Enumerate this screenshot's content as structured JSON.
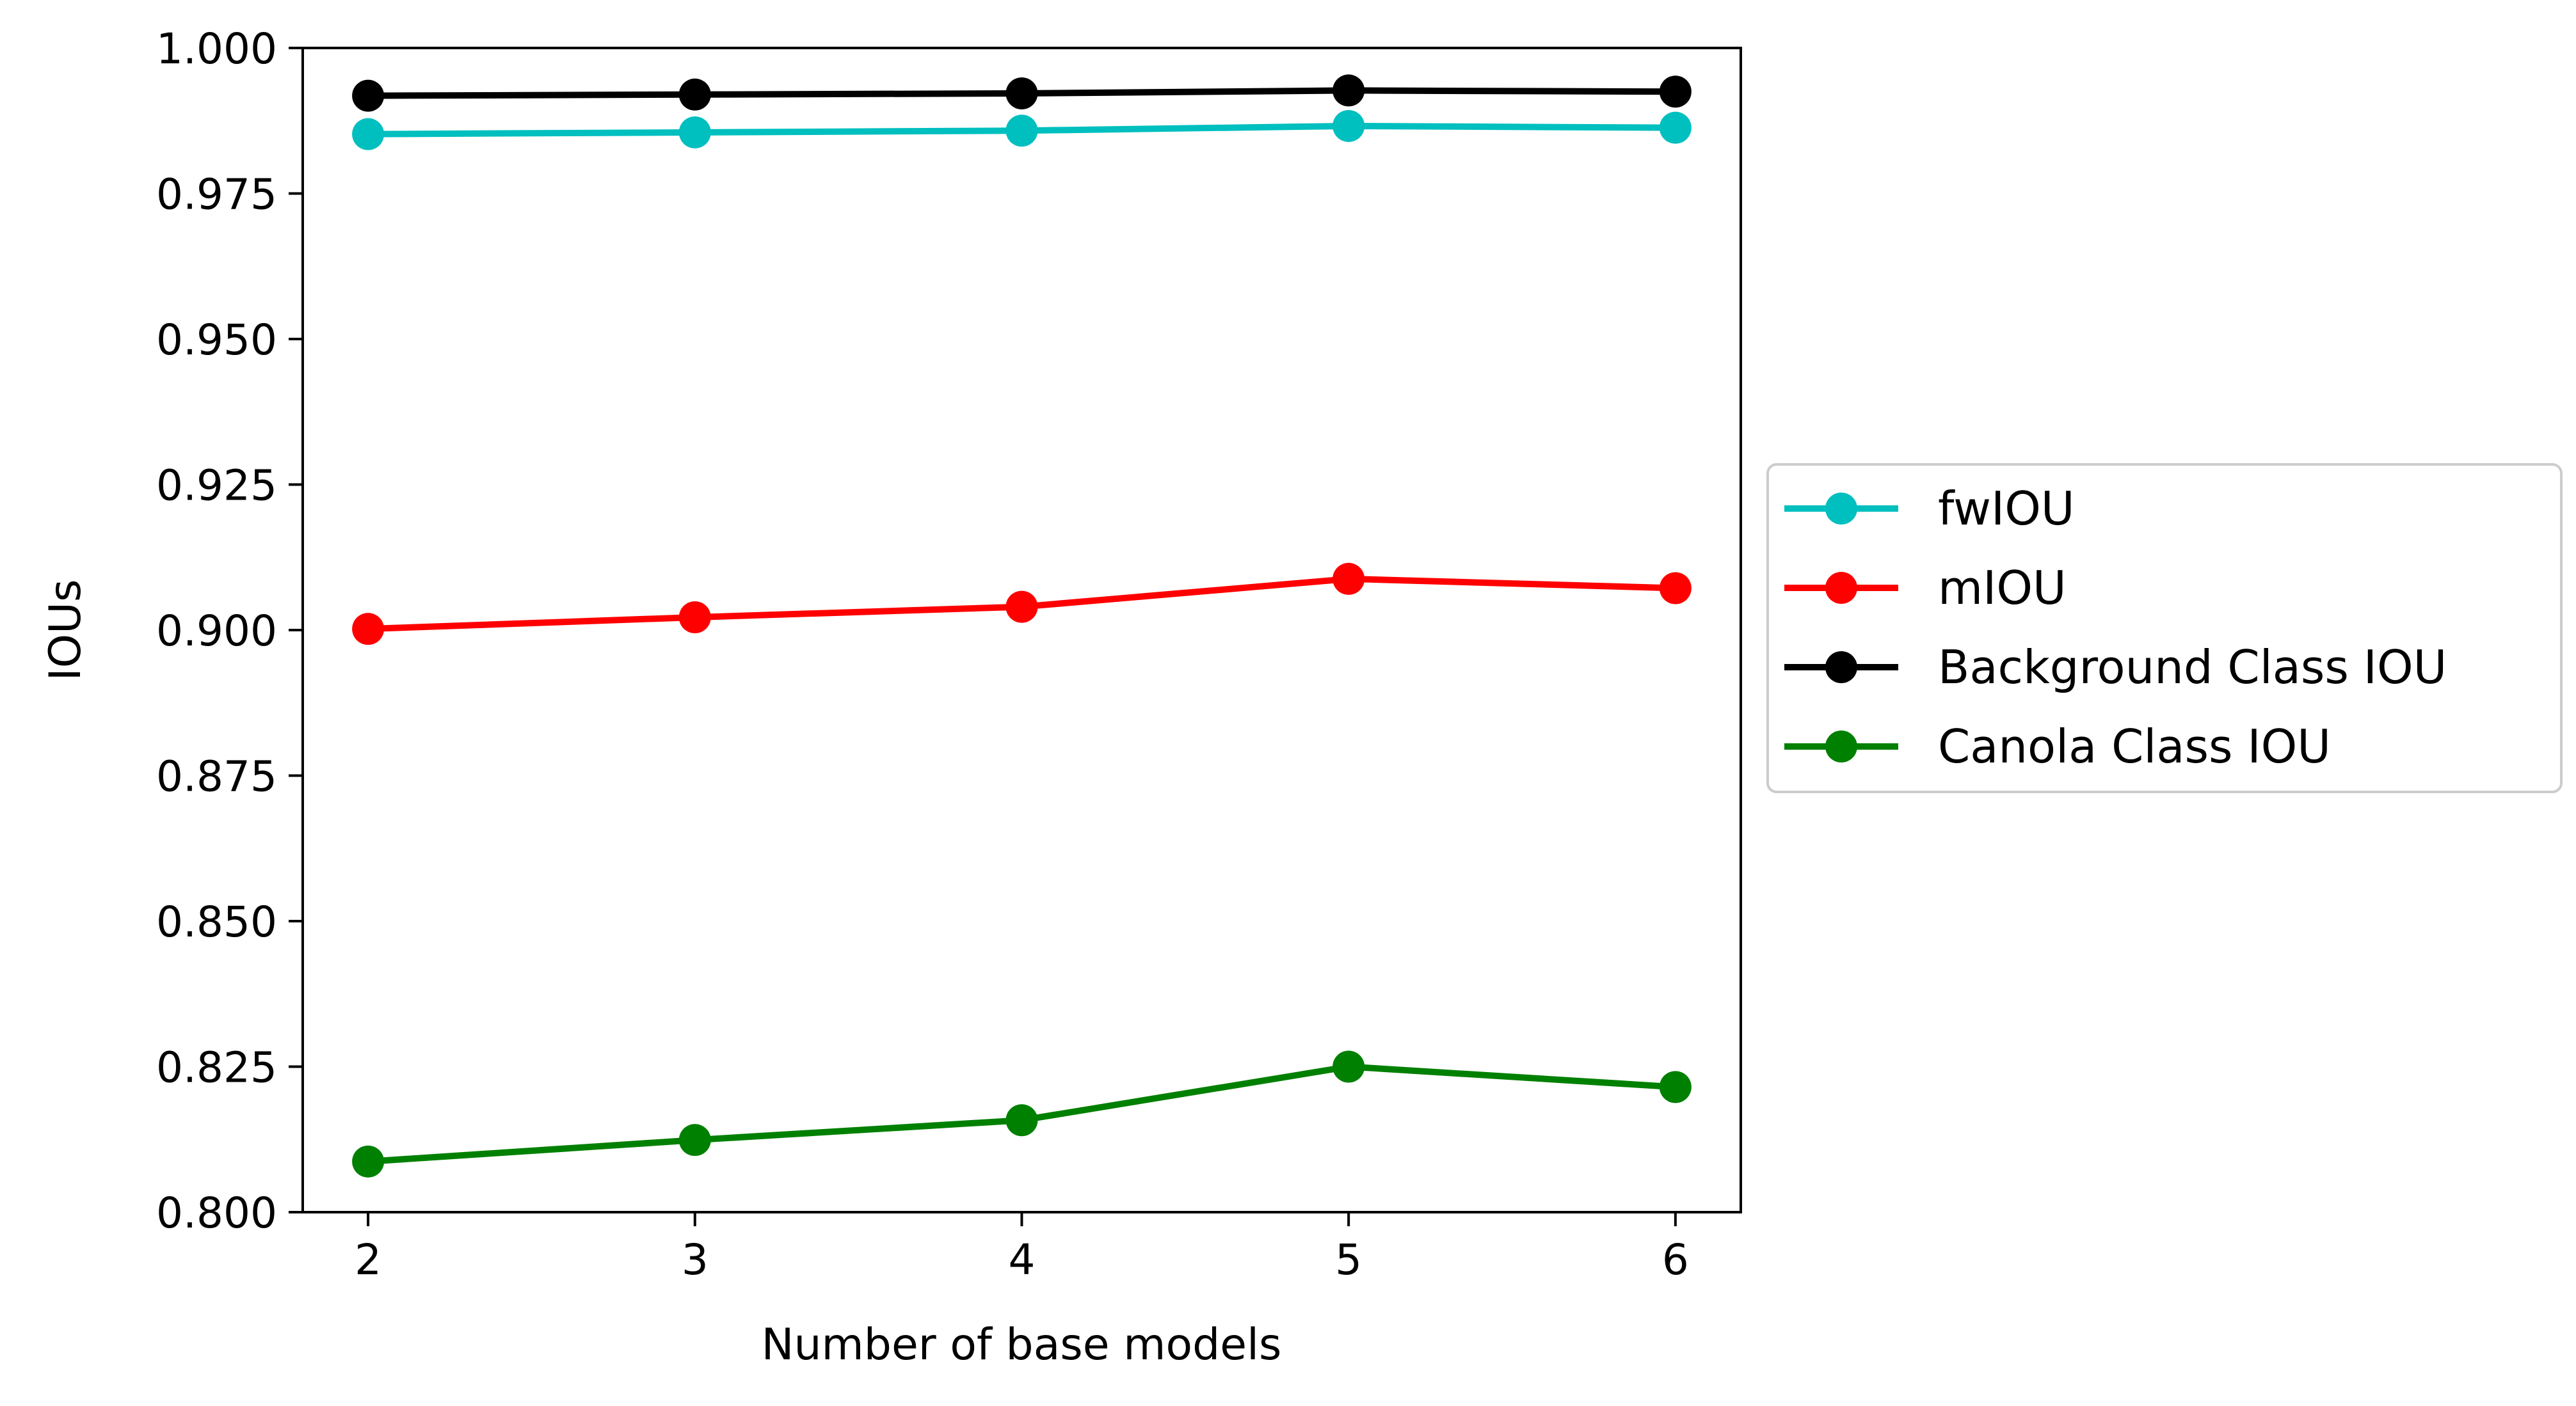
{
  "chart_data": {
    "type": "line",
    "title": "",
    "xlabel": "Number of base models",
    "ylabel": "IOUs",
    "x": [
      2,
      3,
      4,
      5,
      6
    ],
    "xticks": [
      "2",
      "3",
      "4",
      "5",
      "6"
    ],
    "xlim": [
      1.8,
      6.2
    ],
    "ylim": [
      0.8,
      1.0
    ],
    "yticks": [
      "0.800",
      "0.825",
      "0.850",
      "0.875",
      "0.900",
      "0.925",
      "0.950",
      "0.975",
      "1.000"
    ],
    "grid": false,
    "legend_position": "outside-right",
    "series": [
      {
        "name": "fwIOU",
        "color": "#00bfbf",
        "marker": "circle",
        "values": [
          0.9852,
          0.9855,
          0.9858,
          0.9866,
          0.9863
        ]
      },
      {
        "name": "mIOU",
        "color": "#ff0000",
        "marker": "circle",
        "values": [
          0.9002,
          0.9022,
          0.904,
          0.9088,
          0.9072
        ]
      },
      {
        "name": "Background Class IOU",
        "color": "#000000",
        "marker": "circle",
        "values": [
          0.9918,
          0.992,
          0.9922,
          0.9927,
          0.9925
        ]
      },
      {
        "name": "Canola Class IOU",
        "color": "#008000",
        "marker": "circle",
        "values": [
          0.8087,
          0.8124,
          0.8158,
          0.825,
          0.8215
        ]
      }
    ]
  }
}
